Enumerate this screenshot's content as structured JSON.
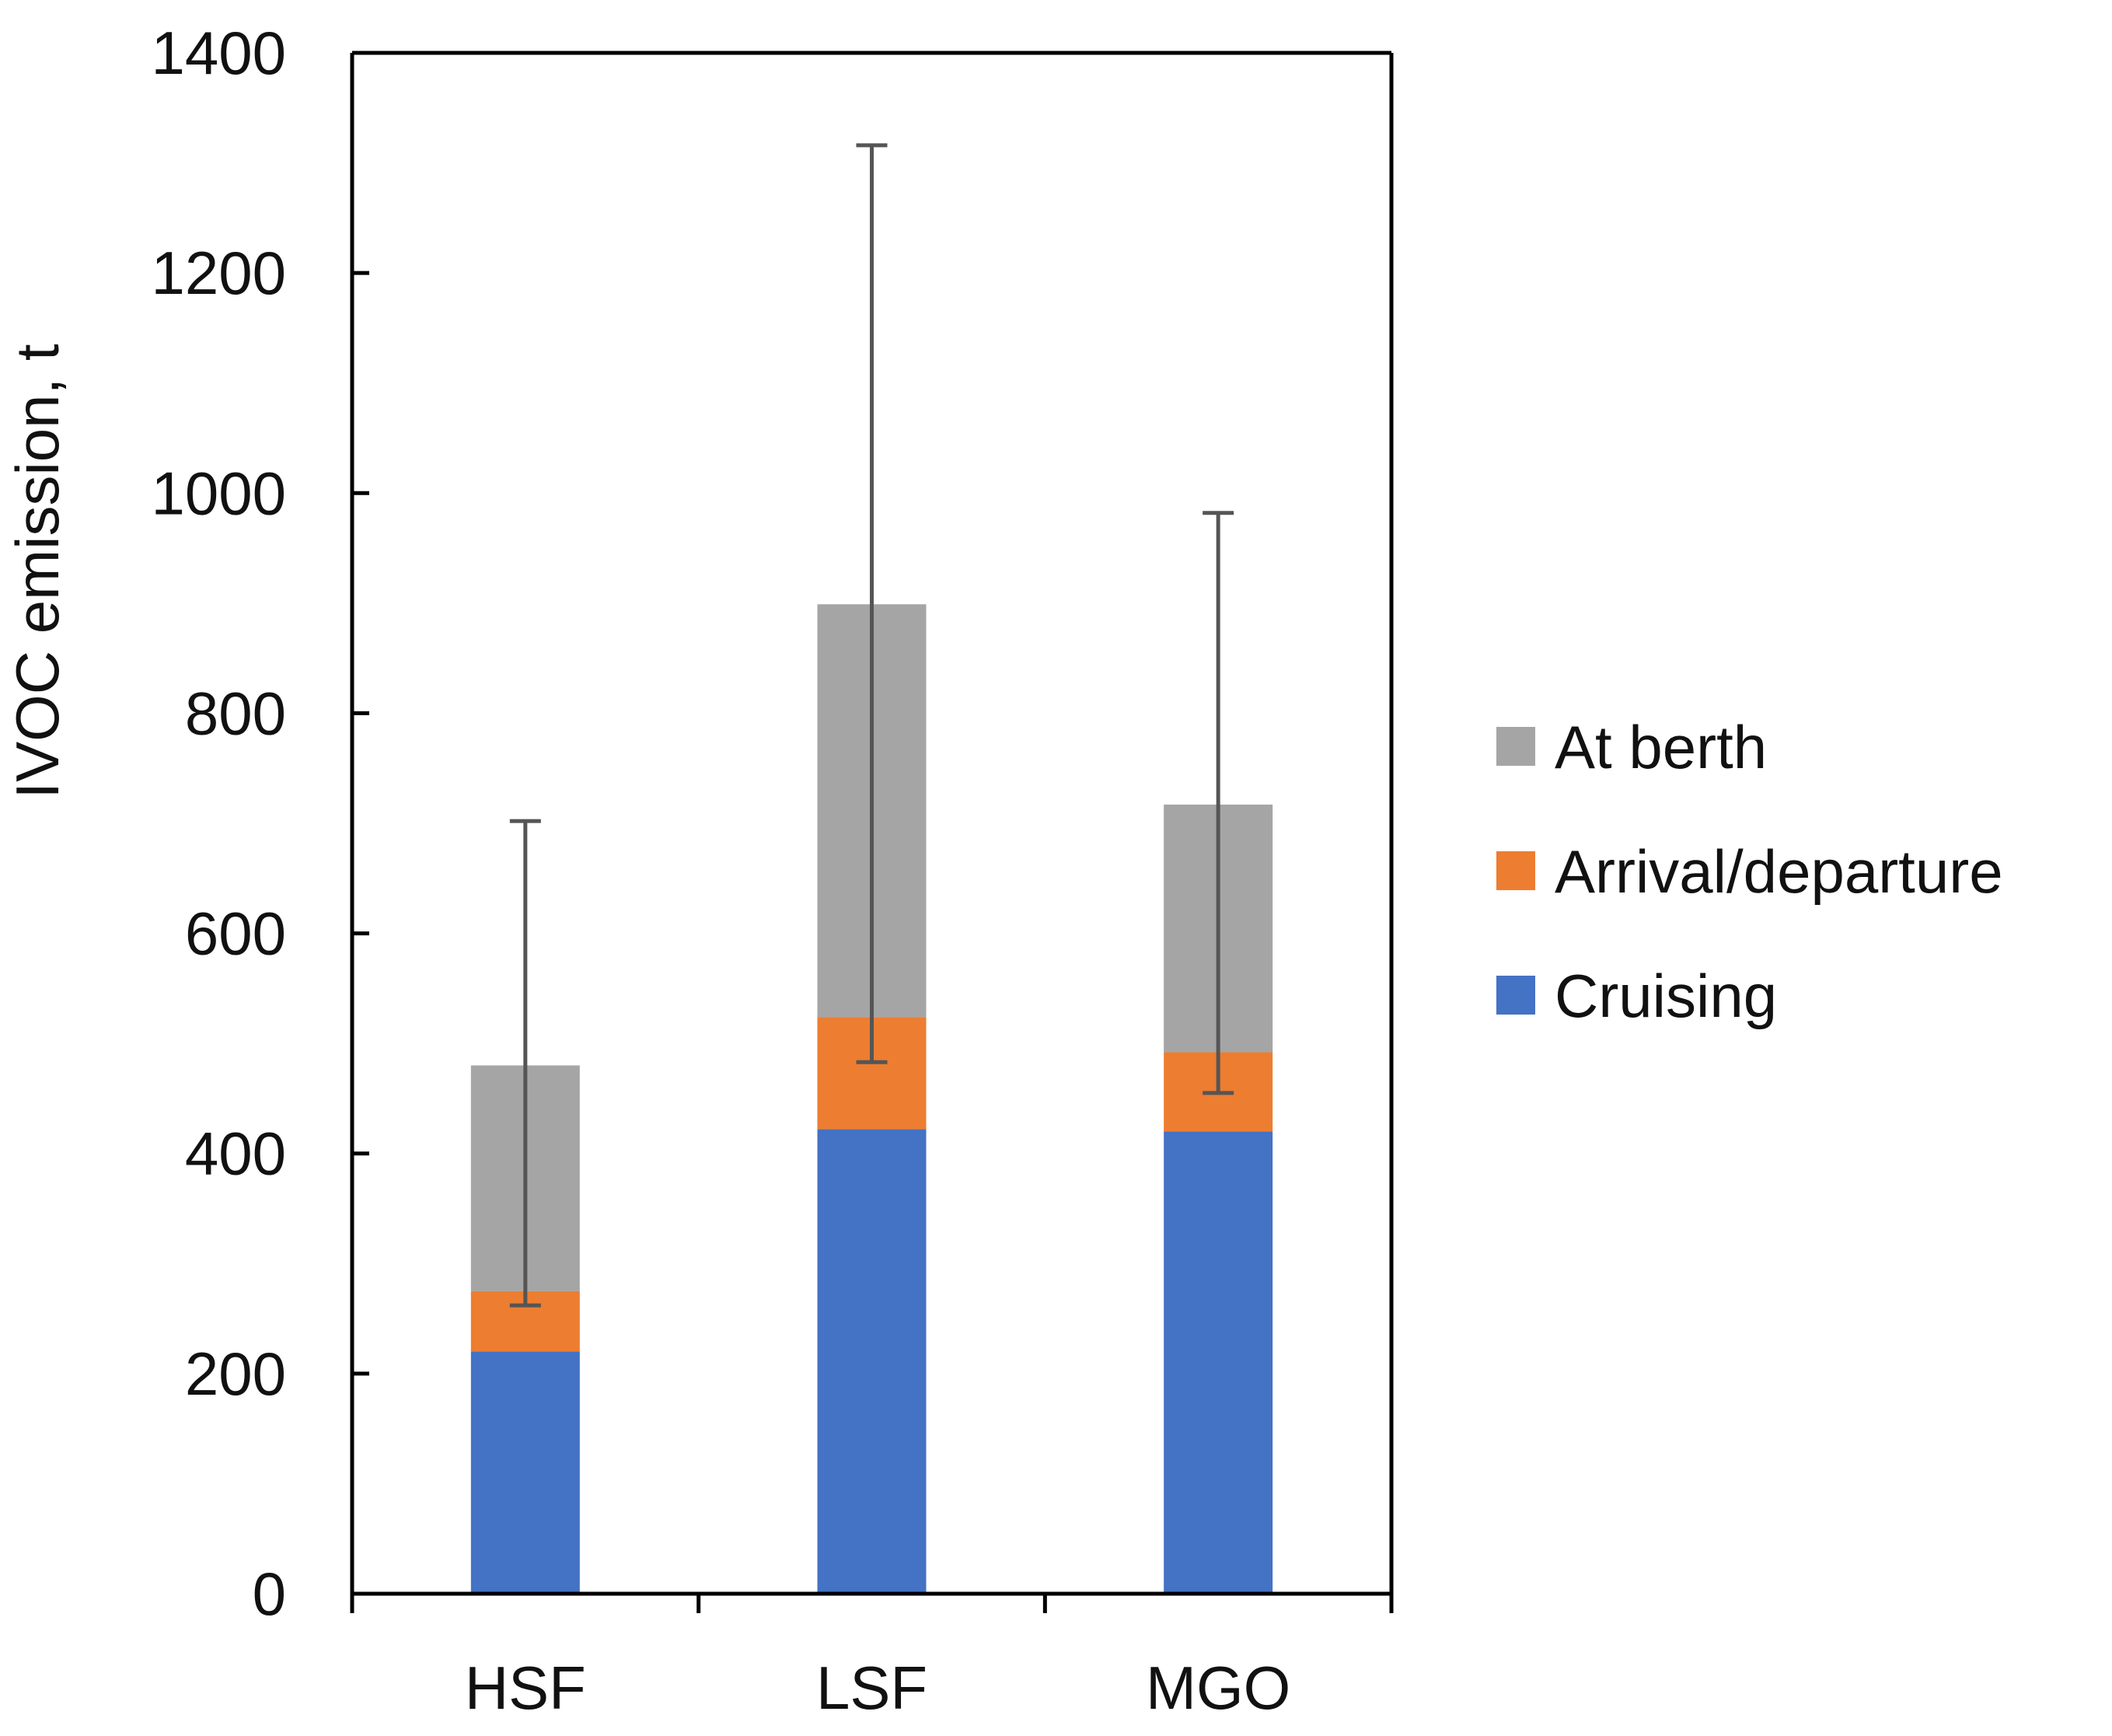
{
  "chart_data": {
    "type": "bar",
    "stacked": true,
    "title": "",
    "xlabel": "",
    "ylabel": "IVOC emission, t",
    "ylim": [
      0,
      1400
    ],
    "yticks": [
      0,
      200,
      400,
      600,
      800,
      1000,
      1200,
      1400
    ],
    "categories": [
      "HSF",
      "LSF",
      "MGO"
    ],
    "series": [
      {
        "name": "Cruising",
        "values": [
          220,
          422,
          420
        ],
        "color": "#4472C4"
      },
      {
        "name": "Arrival/departure",
        "values": [
          55,
          102,
          72
        ],
        "color": "#ED7D31"
      },
      {
        "name": "At berth",
        "values": [
          205,
          375,
          225
        ],
        "color": "#A5A5A5"
      }
    ],
    "error_bars": [
      {
        "category": "HSF",
        "low": 262,
        "high": 702
      },
      {
        "category": "LSF",
        "low": 483,
        "high": 1316
      },
      {
        "category": "MGO",
        "low": 455,
        "high": 982
      }
    ],
    "legend": {
      "placement": "right",
      "order": [
        "At berth",
        "Arrival/departure",
        "Cruising"
      ]
    },
    "grid": false
  }
}
